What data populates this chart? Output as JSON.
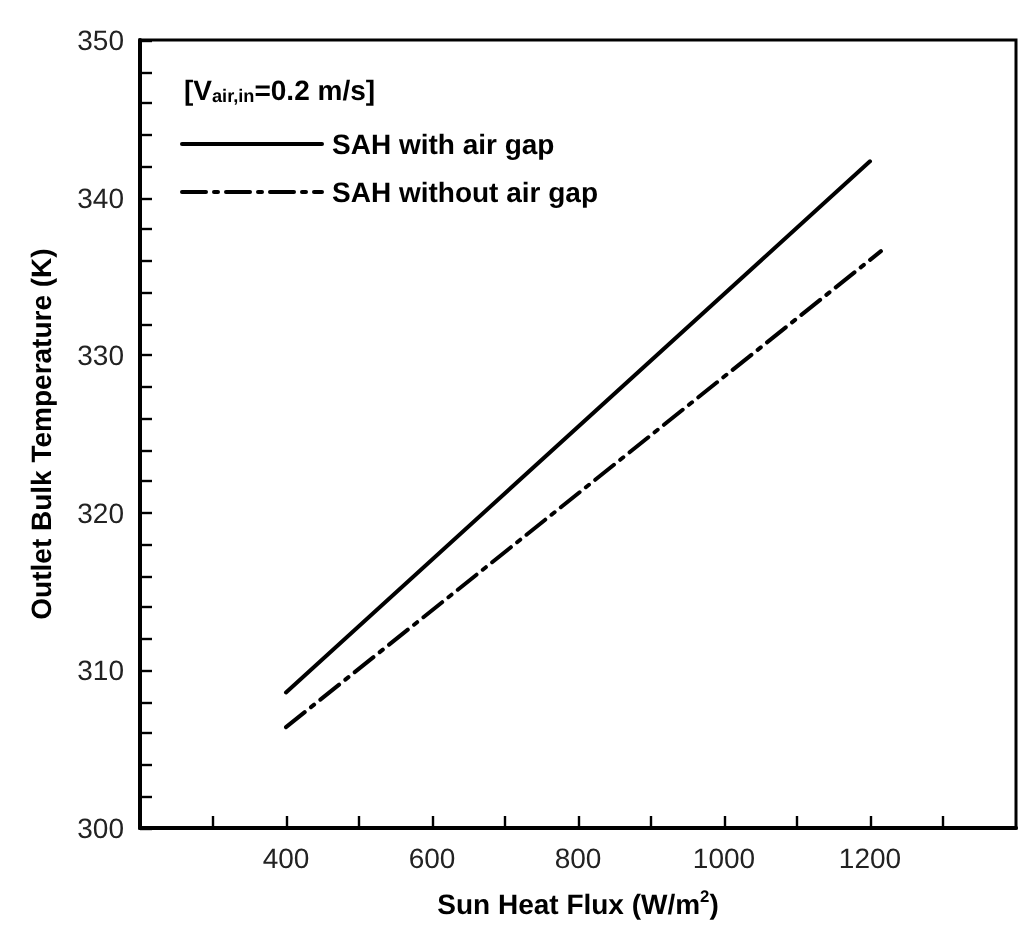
{
  "chart_data": {
    "type": "line",
    "xlabel": "Sun Heat Flux (W/m$^{2}$)",
    "ylabel": "Outlet Bulk Temperature (K)",
    "annotations": [
      "[V$_{air,in}$=0.2 m/s]"
    ],
    "series": [
      {
        "name": "SAH with air gap",
        "color": "#000000",
        "x": [
          400,
          1200
        ],
        "values": [
          308.6,
          342.3
        ],
        "line_style": "solid"
      },
      {
        "name": "SAH without air gap",
        "color": "#000000",
        "x": [
          400,
          1215
        ],
        "values": [
          306.4,
          336.6
        ],
        "line_style": "dashed"
      }
    ],
    "xlim": [
      200,
      1400
    ],
    "xticks": [
      {
        "value": 300,
        "label": null
      },
      400,
      {
        "value": 500,
        "label": null
      },
      600,
      {
        "value": 700,
        "label": null
      },
      800,
      {
        "value": 900,
        "label": null
      },
      1000,
      {
        "value": 1100,
        "label": null
      },
      1200,
      {
        "value": 1300,
        "label": null
      }
    ],
    "ylim": [
      300,
      350
    ],
    "yticks": [
      300,
      {
        "value": 302,
        "label": null
      },
      {
        "value": 304,
        "label": null
      },
      {
        "value": 306,
        "label": null
      },
      {
        "value": 308,
        "label": null
      },
      310,
      {
        "value": 312,
        "label": null
      },
      {
        "value": 314,
        "label": null
      },
      {
        "value": 316,
        "label": null
      },
      {
        "value": 318,
        "label": null
      },
      320,
      {
        "value": 322,
        "label": null
      },
      {
        "value": 324,
        "label": null
      },
      {
        "value": 326,
        "label": null
      },
      {
        "value": 328,
        "label": null
      },
      330,
      {
        "value": 332,
        "label": null
      },
      {
        "value": 334,
        "label": null
      },
      {
        "value": 336,
        "label": null
      },
      {
        "value": 338,
        "label": null
      },
      340,
      {
        "value": 342,
        "label": null
      },
      {
        "value": 344,
        "label": null
      },
      {
        "value": 346,
        "label": null
      },
      {
        "value": 348,
        "label": null
      },
      350
    ],
    "grid": false,
    "legend": "top left",
    "marker": "none"
  }
}
